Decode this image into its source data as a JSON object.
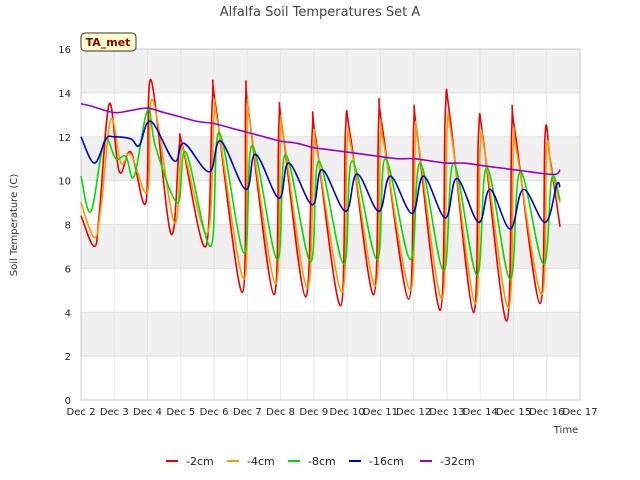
{
  "chart_data": {
    "type": "line",
    "title": "Alfalfa Soil Temperatures Set A",
    "xlabel": "Time",
    "ylabel": "Soil Temperature (C)",
    "tag": "TA_met",
    "xlim": [
      2,
      17
    ],
    "ylim": [
      0,
      16
    ],
    "x_ticks": [
      2,
      3,
      4,
      5,
      6,
      7,
      8,
      9,
      10,
      11,
      12,
      13,
      14,
      15,
      16,
      17
    ],
    "x_tick_labels": [
      "Dec 2",
      "Dec 3",
      "Dec 4",
      "Dec 5",
      "Dec 6",
      "Dec 7",
      "Dec 8",
      "Dec 9",
      "Dec 10",
      "Dec 11",
      "Dec 12",
      "Dec 13",
      "Dec 14",
      "Dec 15",
      "Dec 16",
      "Dec 17"
    ],
    "y_ticks": [
      0,
      2,
      4,
      6,
      8,
      10,
      12,
      14,
      16
    ],
    "y_tick_labels": [
      "0",
      "2",
      "4",
      "6",
      "8",
      "10",
      "12",
      "14",
      "16"
    ],
    "grid": true,
    "legend_position": "bottom",
    "series": [
      {
        "name": "-2cm",
        "color": "#ee0000",
        "x": [
          2.0,
          2.4,
          2.55,
          2.85,
          3.15,
          3.5,
          3.95,
          4.1,
          4.7,
          4.95,
          5.05,
          5.75,
          5.95,
          6.05,
          6.85,
          6.95,
          7.05,
          7.8,
          7.95,
          8.05,
          8.75,
          8.95,
          9.05,
          9.8,
          9.95,
          10.1,
          10.8,
          10.95,
          11.05,
          11.85,
          12.0,
          12.1,
          12.8,
          12.95,
          13.1,
          13.8,
          13.95,
          14.1,
          14.8,
          14.95,
          15.05,
          15.8,
          15.95,
          16.1,
          16.4
        ],
        "y": [
          8.4,
          7.0,
          8.5,
          13.5,
          10.4,
          11.3,
          9.0,
          14.6,
          7.6,
          11.5,
          11.6,
          7.0,
          13.7,
          13.4,
          4.9,
          13.7,
          13.0,
          4.8,
          12.6,
          12.4,
          4.7,
          12.2,
          12.0,
          4.3,
          12.3,
          12.0,
          4.8,
          12.8,
          12.5,
          4.6,
          12.5,
          12.2,
          4.1,
          13.1,
          12.8,
          4.0,
          12.1,
          11.8,
          3.6,
          12.4,
          12.2,
          4.4,
          12.1,
          11.0,
          7.9
        ]
      },
      {
        "name": "-4cm",
        "color": "#ff9900",
        "x": [
          2.0,
          2.4,
          2.6,
          2.9,
          3.2,
          3.5,
          4.0,
          4.15,
          4.8,
          5.0,
          5.1,
          5.8,
          6.0,
          6.1,
          6.9,
          7.0,
          7.1,
          7.85,
          8.0,
          8.1,
          8.8,
          9.0,
          9.1,
          9.85,
          10.0,
          10.15,
          10.85,
          11.0,
          11.1,
          11.9,
          12.05,
          12.15,
          12.85,
          13.0,
          13.15,
          13.85,
          14.0,
          14.15,
          14.85,
          15.0,
          15.1,
          15.85,
          16.0,
          16.15,
          16.4
        ],
        "y": [
          9.0,
          7.4,
          8.8,
          12.8,
          10.8,
          11.2,
          9.5,
          13.7,
          8.1,
          11.2,
          11.3,
          7.6,
          13.0,
          12.7,
          5.5,
          13.0,
          12.4,
          5.3,
          12.2,
          11.9,
          5.1,
          11.6,
          11.3,
          4.9,
          11.6,
          11.3,
          5.2,
          12.0,
          11.7,
          5.0,
          11.9,
          11.6,
          4.6,
          12.2,
          11.9,
          4.4,
          11.5,
          11.2,
          4.2,
          11.6,
          11.3,
          4.8,
          11.5,
          10.4,
          9.0
        ]
      },
      {
        "name": "-8cm",
        "color": "#00dd00",
        "x": [
          2.0,
          2.3,
          2.7,
          3.05,
          3.35,
          3.6,
          4.0,
          4.25,
          4.9,
          5.15,
          5.9,
          6.15,
          6.9,
          7.15,
          7.9,
          8.15,
          8.9,
          9.15,
          9.9,
          10.15,
          10.9,
          11.15,
          11.9,
          12.2,
          12.9,
          13.2,
          13.9,
          14.2,
          14.9,
          15.2,
          15.9,
          16.15,
          16.4
        ],
        "y": [
          10.2,
          8.6,
          11.8,
          11.0,
          11.1,
          10.2,
          13.2,
          11.5,
          9.0,
          11.3,
          7.0,
          12.2,
          6.7,
          11.6,
          6.4,
          11.2,
          6.3,
          10.9,
          6.2,
          10.9,
          6.4,
          11.0,
          6.4,
          10.8,
          5.9,
          10.8,
          5.7,
          10.6,
          5.5,
          10.4,
          6.2,
          10.1,
          9.1
        ]
      },
      {
        "name": "-16cm",
        "color": "#0000cc",
        "x": [
          2.0,
          2.4,
          2.75,
          3.0,
          3.5,
          3.75,
          4.1,
          4.8,
          5.1,
          5.85,
          6.2,
          6.95,
          7.25,
          7.95,
          8.25,
          8.95,
          9.25,
          9.95,
          10.3,
          10.95,
          11.3,
          11.95,
          12.3,
          12.95,
          13.3,
          13.95,
          14.3,
          14.9,
          15.3,
          15.95,
          16.3,
          16.4
        ],
        "y": [
          12.0,
          10.8,
          11.9,
          12.0,
          11.9,
          11.6,
          12.7,
          10.9,
          11.7,
          10.4,
          11.8,
          9.6,
          11.2,
          9.2,
          10.8,
          8.9,
          10.5,
          8.6,
          10.3,
          8.6,
          10.2,
          8.5,
          10.2,
          8.3,
          10.1,
          8.1,
          9.6,
          7.8,
          9.6,
          8.1,
          9.8,
          9.7
        ]
      },
      {
        "name": "-32cm",
        "color": "#9900cc",
        "x": [
          2.0,
          2.3,
          3.0,
          3.5,
          4.0,
          4.5,
          5.0,
          5.5,
          6.0,
          6.5,
          7.0,
          7.5,
          8.0,
          8.5,
          9.0,
          9.5,
          10.0,
          10.5,
          11.0,
          11.5,
          12.0,
          12.5,
          13.0,
          13.5,
          14.0,
          14.5,
          15.0,
          15.5,
          16.0,
          16.3,
          16.4
        ],
        "y": [
          13.5,
          13.4,
          13.1,
          13.2,
          13.3,
          13.1,
          12.9,
          12.7,
          12.6,
          12.4,
          12.2,
          12.0,
          11.8,
          11.7,
          11.5,
          11.4,
          11.3,
          11.2,
          11.1,
          11.0,
          11.0,
          10.9,
          10.8,
          10.8,
          10.7,
          10.6,
          10.5,
          10.4,
          10.3,
          10.3,
          10.5
        ]
      }
    ]
  }
}
